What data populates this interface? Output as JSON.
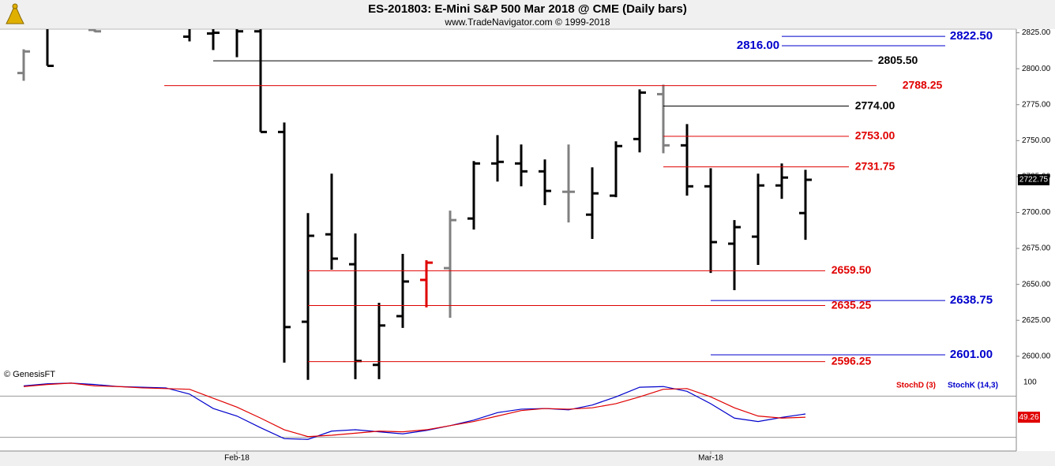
{
  "chart_data": {
    "type": "ohlc",
    "title": "ES-201803:  E-Mini S&P 500 Mar 2018 @ CME  (Daily bars)",
    "subtitle": "www.TradeNavigator.com © 1999-2018",
    "copyright": "© GenesisFT",
    "categories": [
      null,
      null,
      null,
      null,
      null,
      null,
      null,
      null,
      null,
      "Feb-18",
      null,
      null,
      null,
      null,
      null,
      null,
      null,
      null,
      null,
      null,
      null,
      null,
      null,
      null,
      null,
      null,
      null,
      null,
      null,
      "Mar-18",
      null,
      null,
      null,
      null
    ],
    "open": [
      2797,
      2830,
      null,
      2827,
      null,
      null,
      null,
      2822.3,
      2824.5,
      2830,
      2826,
      2756,
      2624,
      2684.8,
      2664,
      2594,
      2627.9,
      2653.1,
      2661.3,
      2695.8,
      2734.1,
      2734.1,
      2728.6,
      2714.4,
      2698.5,
      2711.7,
      2751.1,
      2782.3,
      2746.7,
      2718.2,
      2678.3,
      2683.2,
      2718.8,
      2699.6
    ],
    "high": [
      2813.5,
      2835,
      null,
      2830,
      null,
      null,
      null,
      2835,
      2835,
      2835,
      2835,
      2762.6,
      2699.6,
      2727,
      2685.4,
      2637.2,
      2671.2,
      2666.8,
      2701.3,
      2735.8,
      2753.8,
      2747.3,
      2736.9,
      2747.3,
      2731.4,
      2749.5,
      2785.6,
      2788.9,
      2761.5,
      2730.8,
      2694.7,
      2727,
      2734.1,
      2729.7
    ],
    "low": [
      2791.6,
      2802,
      null,
      2825.5,
      null,
      null,
      null,
      2819,
      2813,
      2808,
      2756,
      2595.6,
      2583.6,
      2660.2,
      2584.1,
      2584.1,
      2619.7,
      2634,
      2626.8,
      2688.1,
      2721.5,
      2718.2,
      2705.1,
      2693.1,
      2681.6,
      2710.6,
      2741.8,
      2741.2,
      2711.7,
      2658,
      2646,
      2663.5,
      2709.5,
      2681
    ],
    "close": [
      2812,
      2802,
      null,
      2826,
      null,
      null,
      null,
      2830,
      2825,
      2826,
      2756,
      2620.3,
      2683.8,
      2667.9,
      2596.7,
      2621.4,
      2652,
      2665.1,
      2694.7,
      2734.1,
      2735.2,
      2728.6,
      2715,
      2714.4,
      2713.3,
      2746.2,
      2783.4,
      2746.7,
      2718.2,
      2679.4,
      2689.8,
      2718.8,
      2724.3,
      2722.75
    ],
    "bar_colors": [
      "#808080",
      "#000000",
      null,
      "#808080",
      null,
      null,
      null,
      "#000000",
      "#000000",
      "#000000",
      "#000000",
      "#000000",
      "#000000",
      "#000000",
      "#000000",
      "#000000",
      "#000000",
      "#e00000",
      "#808080",
      "#000000",
      "#000000",
      "#000000",
      "#000000",
      "#808080",
      "#000000",
      "#000000",
      "#000000",
      "#808080",
      "#000000",
      "#000000",
      "#000000",
      "#000000",
      "#000000",
      "#000000"
    ],
    "ylim": [
      2584,
      2827.5
    ],
    "yticks": [
      {
        "value": 2600,
        "label": "2600.00"
      },
      {
        "value": 2625,
        "label": "2625.00"
      },
      {
        "value": 2650,
        "label": "2650.00"
      },
      {
        "value": 2675,
        "label": "2675.00"
      },
      {
        "value": 2700,
        "label": "2700.00"
      },
      {
        "value": 2725,
        "label": "2725.00"
      },
      {
        "value": 2750,
        "label": "2750.00"
      },
      {
        "value": 2775,
        "label": "2775.00"
      },
      {
        "value": 2800,
        "label": "2800.00"
      },
      {
        "value": 2825,
        "label": "2825.00"
      }
    ],
    "last_price": {
      "value": 2722.75,
      "label": "2722.75"
    },
    "levels": [
      {
        "value": 2822.5,
        "label": "2822.50",
        "color": "#0000cc"
      },
      {
        "value": 2816,
        "label": "2816.00",
        "color": "#0000cc"
      },
      {
        "value": 2805.5,
        "label": "2805.50",
        "color": "#000000"
      },
      {
        "value": 2788.25,
        "label": "2788.25",
        "color": "#e00000"
      },
      {
        "value": 2774,
        "label": "2774.00",
        "color": "#000000"
      },
      {
        "value": 2753,
        "label": "2753.00",
        "color": "#e00000"
      },
      {
        "value": 2731.75,
        "label": "2731.75",
        "color": "#e00000"
      },
      {
        "value": 2659.5,
        "label": "2659.50",
        "color": "#e00000"
      },
      {
        "value": 2638.75,
        "label": "2638.75",
        "color": "#0000cc"
      },
      {
        "value": 2635.25,
        "label": "2635.25",
        "color": "#e00000"
      },
      {
        "value": 2601,
        "label": "2601.00",
        "color": "#0000cc"
      },
      {
        "value": 2596.25,
        "label": "2596.25",
        "color": "#e00000"
      }
    ],
    "indicator": {
      "type": "line",
      "ylim": [
        0,
        100
      ],
      "yticks": [
        100
      ],
      "levels": [
        80,
        20
      ],
      "series": [
        {
          "name": "StochD (3)",
          "color": "#e00000",
          "last_value_label": "49.26",
          "values": [
            94,
            97,
            99,
            95,
            94,
            92,
            91,
            90,
            77,
            64,
            48,
            31,
            21,
            23,
            26,
            29,
            28,
            31,
            37,
            43,
            51,
            59,
            62,
            61,
            63,
            69,
            79,
            90,
            91,
            79,
            63,
            51,
            48,
            49.26
          ]
        },
        {
          "name": "StochK (14,3)",
          "color": "#0000cc",
          "values": [
            95,
            98,
            99,
            97,
            94,
            93,
            92,
            83,
            62,
            51,
            34,
            18,
            17,
            29,
            31,
            28,
            25,
            30,
            37,
            45,
            56,
            61,
            62,
            60,
            67,
            79,
            93,
            94,
            87,
            69,
            48,
            43,
            49,
            54
          ]
        }
      ]
    }
  }
}
